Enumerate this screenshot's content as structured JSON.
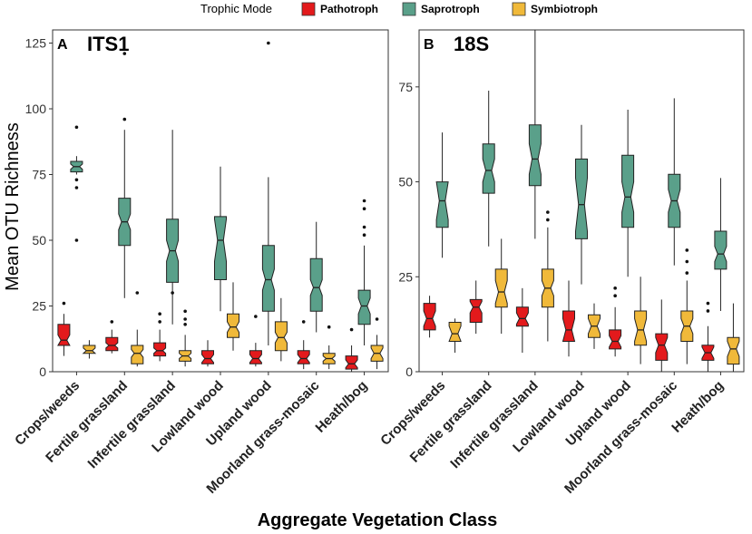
{
  "chart_data": {
    "type": "boxplot",
    "legend": {
      "title": "Trophic Mode",
      "placement": "top-center",
      "entries": [
        {
          "name": "Pathotroph",
          "color": "#e31a1c"
        },
        {
          "name": "Saprotroph",
          "color": "#5aa08a"
        },
        {
          "name": "Symbiotroph",
          "color": "#f0b93a"
        }
      ]
    },
    "xlabel": "Aggregate Vegetation Class",
    "ylabel": "Mean OTU Richness",
    "categories": [
      "Crops/weeds",
      "Fertile grassland",
      "Infertile grassland",
      "Lowland wood",
      "Upland wood",
      "Moorland grass-mosaic",
      "Heath/bog"
    ],
    "panels": [
      {
        "letter": "A",
        "title": "ITS1",
        "ylim": [
          0,
          130
        ],
        "yticks": [
          0,
          25,
          50,
          75,
          100,
          125
        ],
        "series": [
          {
            "name": "Pathotroph",
            "boxes": [
              {
                "low": 6,
                "q1": 10,
                "median": 12,
                "q3": 18,
                "high": 22,
                "notch": 2,
                "outliers": [
                  26
                ]
              },
              {
                "low": 7,
                "q1": 8,
                "median": 10,
                "q3": 13,
                "high": 16,
                "notch": 1,
                "outliers": [
                  19
                ]
              },
              {
                "low": 4,
                "q1": 6,
                "median": 8,
                "q3": 11,
                "high": 16,
                "notch": 1,
                "outliers": [
                  19,
                  22
                ]
              },
              {
                "low": 2,
                "q1": 3,
                "median": 5,
                "q3": 8,
                "high": 12,
                "notch": 1.5,
                "outliers": []
              },
              {
                "low": 2,
                "q1": 3,
                "median": 5,
                "q3": 8,
                "high": 11,
                "notch": 1.5,
                "outliers": [
                  21
                ]
              },
              {
                "low": 1,
                "q1": 3,
                "median": 5,
                "q3": 8,
                "high": 12,
                "notch": 1.5,
                "outliers": [
                  19
                ]
              },
              {
                "low": 0,
                "q1": 1,
                "median": 3,
                "q3": 6,
                "high": 10,
                "notch": 1.5,
                "outliers": [
                  16
                ]
              }
            ]
          },
          {
            "name": "Saprotroph",
            "boxes": [
              {
                "low": 75,
                "q1": 76,
                "median": 78,
                "q3": 80,
                "high": 82,
                "notch": 1,
                "outliers": [
                  50,
                  70,
                  73,
                  93
                ]
              },
              {
                "low": 28,
                "q1": 48,
                "median": 57,
                "q3": 66,
                "high": 92,
                "notch": 3,
                "outliers": [
                  96,
                  121
                ]
              },
              {
                "low": 18,
                "q1": 34,
                "median": 46,
                "q3": 58,
                "high": 92,
                "notch": 4,
                "outliers": [
                  30
                ]
              },
              {
                "low": 23,
                "q1": 35,
                "median": 50,
                "q3": 59,
                "high": 78,
                "notch": 8,
                "outliers": []
              },
              {
                "low": 10,
                "q1": 23,
                "median": 35,
                "q3": 48,
                "high": 74,
                "notch": 4,
                "outliers": [
                  125
                ]
              },
              {
                "low": 15,
                "q1": 23,
                "median": 32,
                "q3": 43,
                "high": 57,
                "notch": 3,
                "outliers": []
              },
              {
                "low": 10,
                "q1": 18,
                "median": 25,
                "q3": 31,
                "high": 48,
                "notch": 3,
                "outliers": [
                  52,
                  55,
                  62,
                  65
                ]
              }
            ]
          },
          {
            "name": "Symbiotroph",
            "boxes": [
              {
                "low": 5,
                "q1": 7,
                "median": 8,
                "q3": 10,
                "high": 12,
                "notch": 1,
                "outliers": []
              },
              {
                "low": 2,
                "q1": 3,
                "median": 7,
                "q3": 10,
                "high": 16,
                "notch": 1.5,
                "outliers": [
                  30
                ]
              },
              {
                "low": 2,
                "q1": 4,
                "median": 6,
                "q3": 8,
                "high": 14,
                "notch": 1,
                "outliers": [
                  18,
                  20,
                  23
                ]
              },
              {
                "low": 8,
                "q1": 13,
                "median": 17,
                "q3": 22,
                "high": 34,
                "notch": 2,
                "outliers": []
              },
              {
                "low": 4,
                "q1": 8,
                "median": 13,
                "q3": 19,
                "high": 28,
                "notch": 2,
                "outliers": []
              },
              {
                "low": 1,
                "q1": 3,
                "median": 5,
                "q3": 7,
                "high": 10,
                "notch": 1,
                "outliers": [
                  17
                ]
              },
              {
                "low": 1,
                "q1": 4,
                "median": 7,
                "q3": 10,
                "high": 14,
                "notch": 2,
                "outliers": [
                  20
                ]
              }
            ]
          }
        ]
      },
      {
        "letter": "B",
        "title": "18S",
        "ylim": [
          0,
          90
        ],
        "yticks": [
          0,
          25,
          50,
          75
        ],
        "series": [
          {
            "name": "Pathotroph",
            "boxes": [
              {
                "low": 9,
                "q1": 11,
                "median": 14,
                "q3": 18,
                "high": 20,
                "notch": 2,
                "outliers": []
              },
              {
                "low": 10,
                "q1": 13,
                "median": 17,
                "q3": 19,
                "high": 24,
                "notch": 1.5,
                "outliers": []
              },
              {
                "low": 5,
                "q1": 12,
                "median": 14,
                "q3": 17,
                "high": 22,
                "notch": 1.5,
                "outliers": []
              },
              {
                "low": 4,
                "q1": 8,
                "median": 11,
                "q3": 16,
                "high": 24,
                "notch": 3,
                "outliers": []
              },
              {
                "low": 4,
                "q1": 6,
                "median": 8,
                "q3": 11,
                "high": 17,
                "notch": 1.5,
                "outliers": [
                  20,
                  22
                ]
              },
              {
                "low": 0,
                "q1": 3,
                "median": 7,
                "q3": 10,
                "high": 19,
                "notch": 2,
                "outliers": []
              },
              {
                "low": 0,
                "q1": 3,
                "median": 5,
                "q3": 7,
                "high": 12,
                "notch": 1.5,
                "outliers": [
                  16,
                  18
                ]
              }
            ]
          },
          {
            "name": "Saprotroph",
            "boxes": [
              {
                "low": 30,
                "q1": 38,
                "median": 45,
                "q3": 50,
                "high": 63,
                "notch": 5,
                "outliers": []
              },
              {
                "low": 33,
                "q1": 47,
                "median": 53,
                "q3": 60,
                "high": 74,
                "notch": 3,
                "outliers": []
              },
              {
                "low": 35,
                "q1": 49,
                "median": 56,
                "q3": 65,
                "high": 90,
                "notch": 4,
                "outliers": []
              },
              {
                "low": 23,
                "q1": 35,
                "median": 44,
                "q3": 56,
                "high": 65,
                "notch": 7,
                "outliers": []
              },
              {
                "low": 25,
                "q1": 38,
                "median": 46,
                "q3": 57,
                "high": 69,
                "notch": 4,
                "outliers": []
              },
              {
                "low": 28,
                "q1": 38,
                "median": 45,
                "q3": 52,
                "high": 72,
                "notch": 3,
                "outliers": []
              },
              {
                "low": 16,
                "q1": 27,
                "median": 31,
                "q3": 37,
                "high": 51,
                "notch": 2,
                "outliers": []
              }
            ]
          },
          {
            "name": "Symbiotroph",
            "boxes": [
              {
                "low": 5,
                "q1": 8,
                "median": 10,
                "q3": 13,
                "high": 14,
                "notch": 2,
                "outliers": []
              },
              {
                "low": 10,
                "q1": 17,
                "median": 21,
                "q3": 27,
                "high": 35,
                "notch": 3,
                "outliers": []
              },
              {
                "low": 8,
                "q1": 17,
                "median": 22,
                "q3": 27,
                "high": 38,
                "notch": 2,
                "outliers": [
                  40,
                  42
                ]
              },
              {
                "low": 6,
                "q1": 9,
                "median": 12,
                "q3": 15,
                "high": 18,
                "notch": 2,
                "outliers": []
              },
              {
                "low": 2,
                "q1": 7,
                "median": 11,
                "q3": 16,
                "high": 25,
                "notch": 3,
                "outliers": []
              },
              {
                "low": 2,
                "q1": 8,
                "median": 12,
                "q3": 16,
                "high": 24,
                "notch": 2,
                "outliers": [
                  26,
                  29,
                  32
                ]
              },
              {
                "low": 0,
                "q1": 2,
                "median": 6,
                "q3": 9,
                "high": 18,
                "notch": 2,
                "outliers": []
              }
            ]
          }
        ]
      }
    ]
  }
}
